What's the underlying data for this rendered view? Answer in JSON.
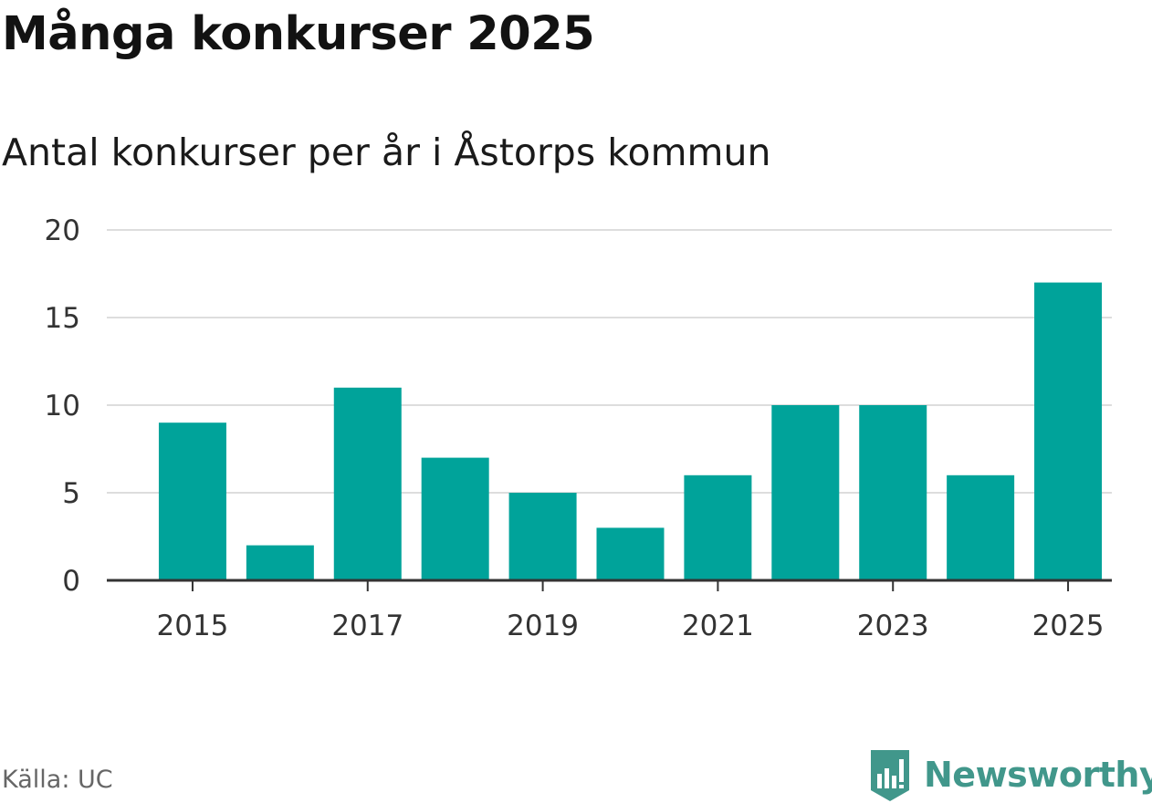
{
  "header": {
    "title": "Många konkurser 2025",
    "subtitle": "Antal konkurser per år i Åstorps kommun"
  },
  "footer": {
    "source": "Källa: UC",
    "brand": "Newsworthy"
  },
  "colors": {
    "bar": "#00a39a",
    "grid": "#dddddd",
    "axis": "#333333",
    "brand": "#41978b"
  },
  "chart_data": {
    "type": "bar",
    "title": "Många konkurser 2025",
    "subtitle": "Antal konkurser per år i Åstorps kommun",
    "categories": [
      "2015",
      "2016",
      "2017",
      "2018",
      "2019",
      "2020",
      "2021",
      "2022",
      "2023",
      "2024",
      "2025"
    ],
    "values": [
      9,
      2,
      11,
      7,
      5,
      3,
      6,
      10,
      10,
      6,
      17
    ],
    "x_tick_labels": [
      "2015",
      "2017",
      "2019",
      "2021",
      "2023",
      "2025"
    ],
    "y_ticks": [
      0,
      5,
      10,
      15,
      20
    ],
    "ylim": [
      0,
      20
    ],
    "xlabel": "",
    "ylabel": "",
    "grid": true,
    "legend": false
  }
}
